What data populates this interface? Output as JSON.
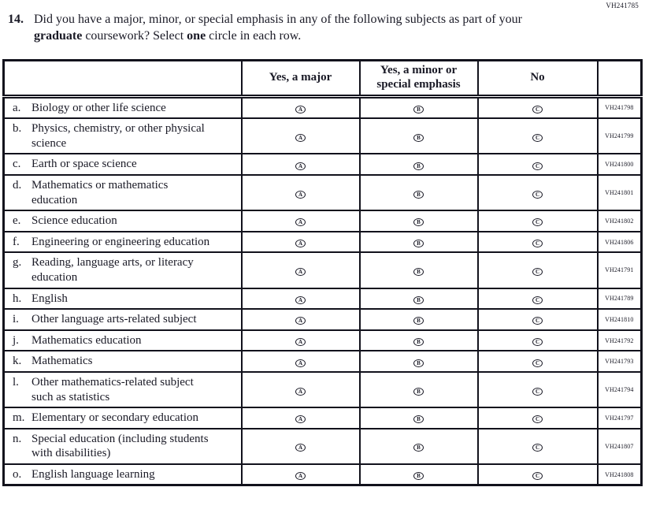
{
  "page": {
    "top_right_code": "VH241785",
    "question": {
      "number": "14.",
      "text_part1": "Did you have a major, minor, or special emphasis in any of the following subjects as part of your ",
      "bold1": "graduate",
      "text_part2": " coursework? Select ",
      "bold2": "one",
      "text_part3": " circle in each row."
    }
  },
  "table": {
    "headers": {
      "subject": "",
      "yes_major": "Yes, a major",
      "yes_minor": "Yes, a minor or special emphasis",
      "no": "No",
      "code": ""
    },
    "options": [
      "A",
      "B",
      "C"
    ],
    "rows": [
      {
        "letter": "a.",
        "label": "Biology or other life science",
        "code": "VH241798"
      },
      {
        "letter": "b.",
        "label": "Physics, chemistry, or other physical science",
        "code": "VH241799"
      },
      {
        "letter": "c.",
        "label": "Earth or space science",
        "code": "VH241800"
      },
      {
        "letter": "d.",
        "label": "Mathematics or mathematics education",
        "code": "VH241801"
      },
      {
        "letter": "e.",
        "label": "Science education",
        "code": "VH241802"
      },
      {
        "letter": "f.",
        "label": "Engineering or engineering education",
        "code": "VH241806"
      },
      {
        "letter": "g.",
        "label": "Reading, language arts, or literacy education",
        "code": "VH241791"
      },
      {
        "letter": "h.",
        "label": "English",
        "code": "VH241789"
      },
      {
        "letter": "i.",
        "label": "Other language arts-related subject",
        "code": "VH241810"
      },
      {
        "letter": "j.",
        "label": "Mathematics education",
        "code": "VH241792"
      },
      {
        "letter": "k.",
        "label": "Mathematics",
        "code": "VH241793"
      },
      {
        "letter": "l.",
        "label": "Other mathematics-related subject such as statistics",
        "code": "VH241794"
      },
      {
        "letter": "m.",
        "label": "Elementary or secondary education",
        "code": "VH241797"
      },
      {
        "letter": "n.",
        "label": "Special education (including students with disabilities)",
        "code": "VH241807"
      },
      {
        "letter": "o.",
        "label": "English language learning",
        "code": "VH241808"
      }
    ]
  }
}
